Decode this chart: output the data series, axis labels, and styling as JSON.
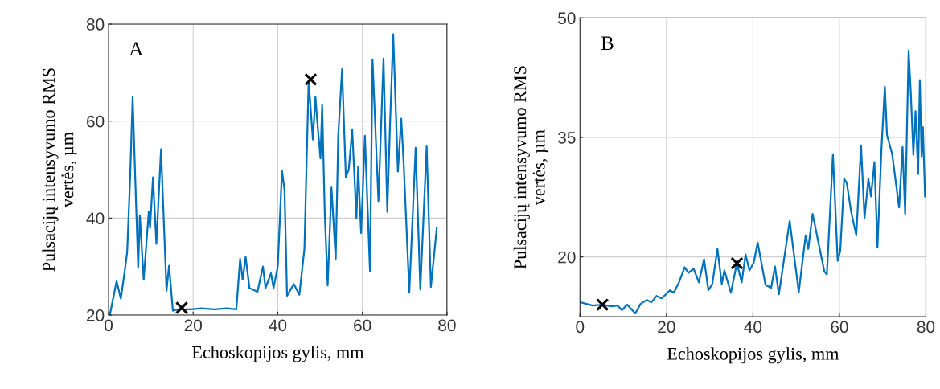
{
  "chart_data": [
    {
      "type": "line",
      "xlabel": "Echoskopijos gylis, mm",
      "ylabel": "Pulsacijų intensyvumo RMS\nvertės, µm",
      "annotations": [
        "A"
      ],
      "xlim": [
        0,
        80
      ],
      "ylim": [
        20,
        80
      ],
      "xticks": [
        0,
        20,
        40,
        60,
        80
      ],
      "yticks": [
        20,
        40,
        60,
        80
      ],
      "grid": true,
      "series": [
        {
          "color": "#0072bd",
          "marker": "none",
          "x": [
            0.3,
            1.9,
            2.9,
            3.8,
            4.4,
            5.1,
            5.7,
            6.3,
            7.0,
            7.4,
            8.3,
            9.5,
            9.8,
            10.5,
            11.3,
            12.4,
            13.7,
            14.3,
            15.2,
            16.5,
            19.4,
            22,
            25,
            28,
            30.2,
            31.1,
            31.7,
            32.4,
            33.3,
            35.2,
            36.5,
            37.1,
            38.4,
            39.0,
            40.0,
            41.0,
            41.6,
            42.2,
            43.8,
            45.1,
            46.3,
            47.3,
            48.3,
            48.9,
            49.5,
            50.1,
            50.5,
            51.1,
            51.8,
            52.7,
            53.7,
            54.3,
            55.2,
            56.1,
            56.8,
            57.6,
            58.6,
            59.0,
            59.7,
            60.6,
            61.8,
            62.4,
            63.8,
            65.0,
            65.9,
            66.5,
            67.3,
            68.4,
            69.2,
            69.8,
            71.1,
            72.6,
            73.7,
            75.2,
            76.2,
            77.1,
            77.6
          ],
          "values": [
            20,
            27,
            23.4,
            28.9,
            33,
            48.4,
            65,
            48.4,
            29.8,
            40.5,
            27.3,
            41.3,
            38,
            48.4,
            34.7,
            54.2,
            25,
            30.2,
            20.9,
            21.2,
            21.2,
            21.4,
            21.2,
            21.4,
            21.2,
            31.6,
            27.3,
            32,
            25.6,
            24.8,
            30,
            25.6,
            28.6,
            25.6,
            30,
            49.8,
            45.7,
            24,
            26.4,
            24.2,
            33.6,
            68.3,
            56.2,
            65,
            58.3,
            52.3,
            63.3,
            41.3,
            26.1,
            46.3,
            31.6,
            57,
            70.7,
            48.4,
            50.1,
            58.3,
            39.9,
            50.6,
            36.9,
            57,
            29.1,
            72.7,
            43.5,
            72.9,
            41.3,
            58.3,
            77.9,
            49.6,
            60.5,
            50.6,
            24.8,
            54.5,
            25.3,
            54.8,
            25.8,
            33.6,
            38
          ]
        },
        {
          "type": "scatter",
          "color": "#000000",
          "marker": "cross",
          "x": [
            17.3,
            47.8
          ],
          "values": [
            21.5,
            68.6
          ]
        }
      ]
    },
    {
      "type": "line",
      "xlabel": "Echoskopijos gylis, mm",
      "ylabel": "Pulsacijų intensyvumo RMS\nvertės, µm",
      "annotations": [
        "B"
      ],
      "xlim": [
        0,
        80
      ],
      "ylim": [
        12.5,
        50
      ],
      "xticks": [
        0,
        20,
        40,
        60,
        80
      ],
      "yticks": [
        20,
        35,
        50
      ],
      "grid": true,
      "series": [
        {
          "color": "#0072bd",
          "marker": "none",
          "x": [
            0.1,
            2.9,
            5.2,
            7.2,
            8.7,
            9.7,
            10.9,
            12.8,
            14.0,
            15.5,
            16.5,
            17.7,
            18.9,
            20.8,
            21.7,
            22.9,
            24.2,
            25.1,
            26.3,
            27.5,
            28.7,
            29.7,
            30.6,
            31.8,
            32.8,
            33.4,
            34.9,
            36.3,
            37.4,
            38.3,
            39.2,
            40.2,
            41.1,
            42.9,
            44.2,
            45.1,
            46.0,
            48.5,
            50.6,
            52.2,
            52.8,
            53.8,
            56.5,
            57.1,
            58.5,
            59.6,
            60.2,
            61.1,
            61.7,
            62.7,
            63.9,
            65.0,
            65.8,
            66.7,
            67.3,
            68.1,
            68.8,
            69.7,
            70.5,
            71.0,
            72.2,
            73.8,
            74.6,
            75.2,
            76.0,
            76.5,
            77.1,
            77.6,
            78.2,
            78.6,
            79.0,
            79.3,
            79.8
          ],
          "values": [
            14.3,
            13.9,
            14.0,
            13.8,
            13.9,
            13.3,
            14.0,
            12.9,
            14.1,
            14.6,
            14.3,
            15.1,
            14.8,
            15.8,
            15.5,
            16.8,
            18.7,
            18.0,
            18.5,
            16.8,
            19.7,
            15.8,
            16.6,
            21.0,
            16.6,
            18.3,
            15.5,
            19.2,
            16.8,
            20.3,
            18.3,
            19.3,
            21.8,
            16.5,
            16.1,
            18.8,
            15.3,
            24.5,
            15.6,
            22.7,
            21.0,
            25.4,
            18.2,
            17.8,
            32.9,
            19.5,
            20.8,
            29.8,
            29.3,
            25.7,
            22.7,
            34.0,
            24.9,
            29.8,
            27.6,
            31.9,
            21.2,
            33.3,
            41.4,
            35.3,
            32.9,
            26.2,
            33.8,
            25.4,
            45.9,
            40.7,
            32.8,
            38.3,
            30.4,
            42.2,
            32.6,
            36.3,
            27.6
          ]
        },
        {
          "type": "scatter",
          "color": "#000000",
          "marker": "cross",
          "x": [
            5.2,
            36.3
          ],
          "values": [
            14.0,
            19.2
          ]
        }
      ]
    }
  ]
}
